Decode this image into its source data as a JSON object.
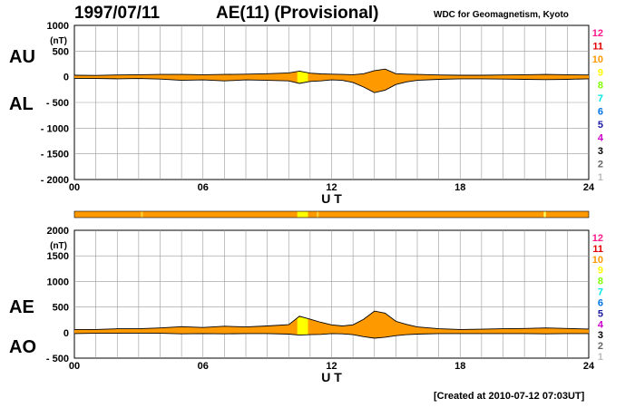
{
  "header": {
    "date": "1997/07/11",
    "title": "AE(11) (Provisional)",
    "organization": "WDC for Geomagnetism, Kyoto"
  },
  "footer": {
    "created": "[Created at 2010-07-12 07:03UT]"
  },
  "colors": {
    "fill": "#ff9900",
    "highlight": "#ffff00",
    "grid": "#999999",
    "axis": "#000000"
  },
  "legend_levels": [
    {
      "label": "12",
      "color": "#ff1a8c"
    },
    {
      "label": "11",
      "color": "#e60000"
    },
    {
      "label": "10",
      "color": "#ff9900"
    },
    {
      "label": "9",
      "color": "#ffff00"
    },
    {
      "label": "8",
      "color": "#80ff00"
    },
    {
      "label": "7",
      "color": "#00e6e6"
    },
    {
      "label": "6",
      "color": "#0073e6"
    },
    {
      "label": "5",
      "color": "#1a1aa6"
    },
    {
      "label": "4",
      "color": "#cc00cc"
    },
    {
      "label": "3",
      "color": "#000000"
    },
    {
      "label": "2",
      "color": "#666666"
    },
    {
      "label": "1",
      "color": "#bbbbbb"
    }
  ],
  "chart_data": [
    {
      "type": "area",
      "name": "AU/AL",
      "side_labels": {
        "upper": "AU",
        "lower": "AL"
      },
      "unit": "(nT)",
      "xlabel": "U T",
      "xlim": [
        0,
        24
      ],
      "x_ticks": [
        "00",
        "06",
        "12",
        "18",
        "24"
      ],
      "ylim": [
        -2000,
        1000
      ],
      "y_ticks": [
        "1000",
        "500",
        "0",
        "- 500",
        "- 1000",
        "- 1500",
        "- 2000"
      ],
      "x": [
        0,
        1,
        2,
        3,
        4,
        5,
        6,
        7,
        8,
        9,
        10,
        10.5,
        11,
        11.5,
        12,
        12.5,
        13,
        13.5,
        14,
        14.5,
        15,
        15.5,
        16,
        17,
        18,
        19,
        20,
        21,
        22,
        23,
        24
      ],
      "series": [
        {
          "name": "AU",
          "values": [
            30,
            25,
            35,
            40,
            45,
            45,
            40,
            45,
            50,
            60,
            75,
            110,
            70,
            55,
            50,
            45,
            40,
            60,
            120,
            150,
            60,
            50,
            45,
            35,
            30,
            30,
            35,
            40,
            45,
            40,
            35
          ]
        },
        {
          "name": "AL",
          "values": [
            -30,
            -35,
            -40,
            -35,
            -45,
            -70,
            -60,
            -80,
            -60,
            -70,
            -80,
            -130,
            -90,
            -80,
            -60,
            -70,
            -110,
            -200,
            -310,
            -260,
            -150,
            -100,
            -70,
            -50,
            -40,
            -40,
            -45,
            -50,
            -55,
            -50,
            -40
          ]
        }
      ],
      "highlight_range": [
        10.4,
        10.9
      ]
    },
    {
      "type": "area",
      "name": "AE/AO",
      "side_labels": {
        "upper": "AE",
        "lower": "AO"
      },
      "unit": "(nT)",
      "xlabel": "U T",
      "xlim": [
        0,
        24
      ],
      "x_ticks": [
        "00",
        "06",
        "12",
        "18",
        "24"
      ],
      "ylim": [
        -500,
        2000
      ],
      "y_ticks": [
        "2000",
        "1500",
        "1000",
        "500",
        "0",
        "- 500"
      ],
      "x": [
        0,
        1,
        2,
        3,
        4,
        5,
        6,
        7,
        8,
        9,
        10,
        10.5,
        11,
        11.5,
        12,
        12.5,
        13,
        13.5,
        14,
        14.5,
        15,
        15.5,
        16,
        17,
        18,
        19,
        20,
        21,
        22,
        23,
        24
      ],
      "series": [
        {
          "name": "AE",
          "values": [
            60,
            60,
            75,
            75,
            90,
            115,
            100,
            125,
            110,
            130,
            155,
            320,
            260,
            200,
            150,
            130,
            150,
            260,
            420,
            380,
            220,
            160,
            110,
            75,
            60,
            65,
            75,
            80,
            90,
            80,
            70
          ]
        },
        {
          "name": "AO",
          "values": [
            -20,
            -15,
            -15,
            -10,
            -15,
            -25,
            -20,
            -25,
            -20,
            -20,
            -30,
            -50,
            -40,
            -35,
            -20,
            -25,
            -40,
            -80,
            -110,
            -90,
            -60,
            -40,
            -30,
            -20,
            -20,
            -20,
            -20,
            -20,
            -25,
            -20,
            -20
          ]
        }
      ],
      "highlight_range": [
        10.4,
        10.9
      ]
    }
  ],
  "status_bar": {
    "xlim": [
      0,
      24
    ],
    "base_color": "#ff9900",
    "segments": [
      {
        "from": 10.4,
        "to": 10.9,
        "color": "#ffff00"
      },
      {
        "from": 3.1,
        "to": 3.2,
        "color": "#ffcc33"
      },
      {
        "from": 11.3,
        "to": 11.4,
        "color": "#ffcc33"
      },
      {
        "from": 21.9,
        "to": 22.0,
        "color": "#ffff66"
      }
    ]
  }
}
